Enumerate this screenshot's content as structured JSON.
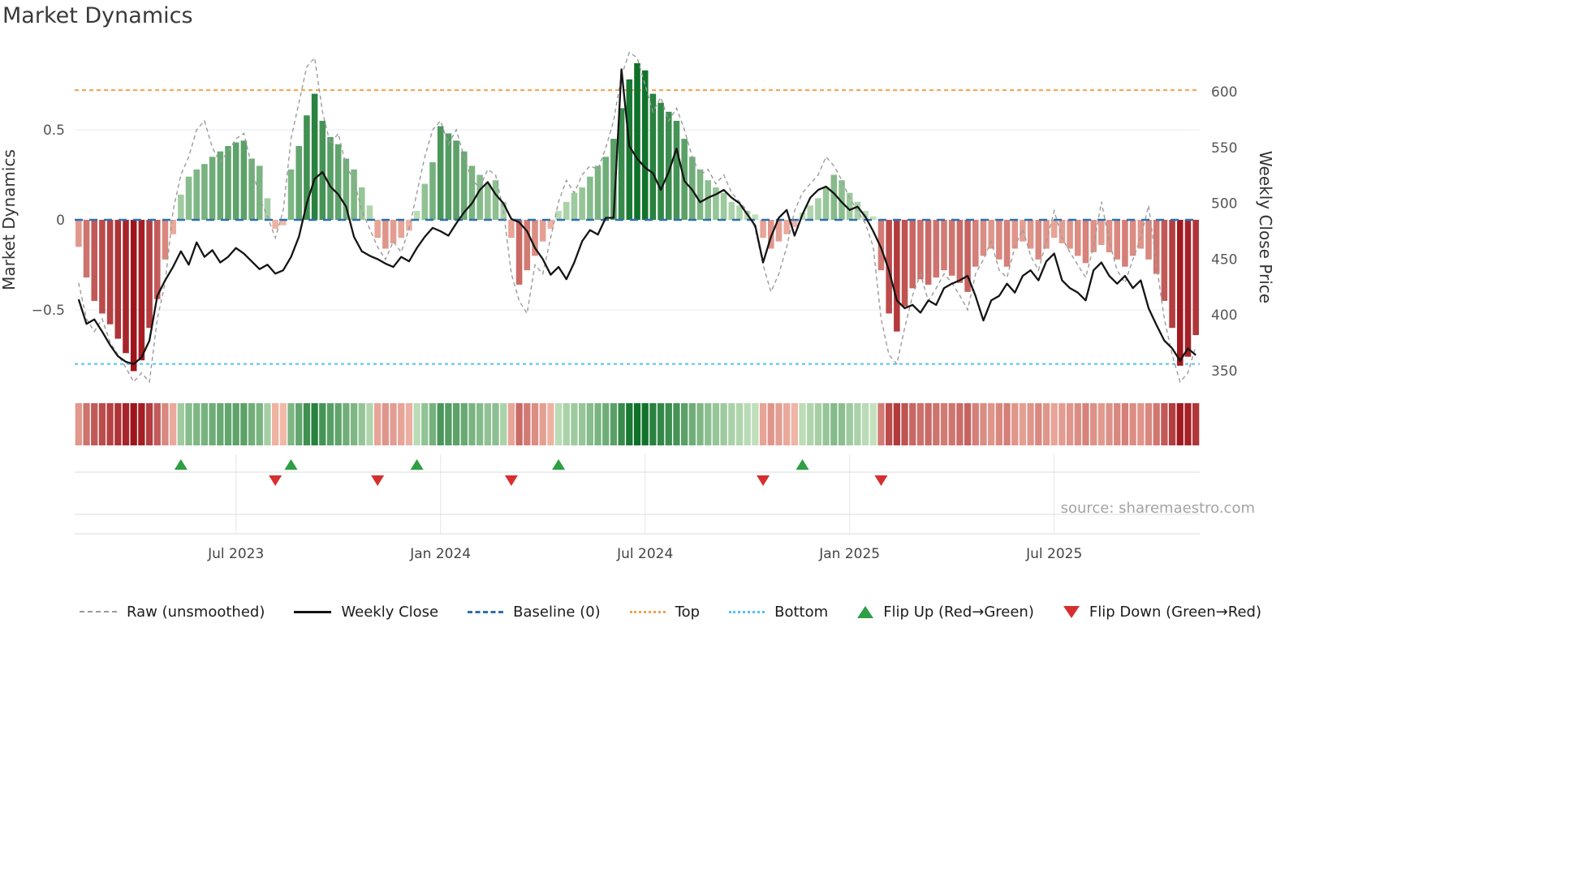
{
  "title": "Market Dynamics",
  "source": "source: sharemaestro.com",
  "colors": {
    "baseline": "#2f6fad",
    "top_line": "#f5a04a",
    "bottom_line": "#4fc3f7",
    "raw_line": "#9b9b9b",
    "price_line": "#141414",
    "flip_up": "#2f9e44",
    "flip_down": "#d62f2f",
    "bar_green_light": "#cde7c5",
    "bar_green_dark": "#0d7128",
    "bar_red_light": "#f7c4b3",
    "bar_red_dark": "#9e121a",
    "gridline": "#e9eef5",
    "band_line": "#dcdcdc",
    "tick_text": "#555555",
    "axis_title_text": "#333333",
    "source_text": "#a3a3a3"
  },
  "legend": {
    "position": "bottom",
    "items": [
      {
        "label": "Raw (unsmoothed)",
        "symbol": "gray-dashed-line"
      },
      {
        "label": "Weekly Close",
        "symbol": "black-solid-line"
      },
      {
        "label": "Baseline (0)",
        "symbol": "blue-long-dashed-line"
      },
      {
        "label": "Top",
        "symbol": "orange-dotted-line"
      },
      {
        "label": "Bottom",
        "symbol": "cyan-dotted-line"
      },
      {
        "label": "Flip Up (Red→Green)",
        "symbol": "green-triangle-up"
      },
      {
        "label": "Flip Down (Green→Red)",
        "symbol": "red-triangle-down"
      }
    ]
  },
  "chart_data": {
    "type": "combo",
    "title": "Market Dynamics",
    "grid": true,
    "y_left": {
      "label": "Market Dynamics",
      "ticks": [
        {
          "value": 0.5,
          "label": "0.5"
        },
        {
          "value": 0,
          "label": "0"
        },
        {
          "value": -0.5,
          "label": "−0.5"
        }
      ],
      "range": [
        -0.95,
        0.95
      ]
    },
    "y_right": {
      "label": "Weekly Close Price",
      "ticks": [
        {
          "value": 600,
          "label": "600"
        },
        {
          "value": 550,
          "label": "550"
        },
        {
          "value": 500,
          "label": "500"
        },
        {
          "value": 450,
          "label": "450"
        },
        {
          "value": 400,
          "label": "400"
        },
        {
          "value": 350,
          "label": "350"
        }
      ],
      "range": [
        333,
        638
      ]
    },
    "x_axis": {
      "ticks": [
        {
          "week": 20,
          "label": "Jul 2023"
        },
        {
          "week": 46,
          "label": "Jan 2024"
        },
        {
          "week": 72,
          "label": "Jul 2024"
        },
        {
          "week": 98,
          "label": "Jan 2025"
        },
        {
          "week": 124,
          "label": "Jul 2025"
        }
      ]
    },
    "reference_lines": {
      "baseline": 0,
      "top": 0.72,
      "bottom": -0.8
    },
    "flip_up_weeks": [
      13,
      27,
      43,
      61,
      92
    ],
    "flip_down_weeks": [
      25,
      38,
      55,
      87,
      102
    ],
    "heatmap_strip": {
      "derived_from": "series.0.values",
      "note": "weekly color band, red negative / green positive, intensity by magnitude"
    },
    "series": [
      {
        "name": "Market Dynamics (smoothed bars)",
        "type": "bar",
        "axis": "left",
        "values": [
          -0.15,
          -0.32,
          -0.45,
          -0.52,
          -0.58,
          -0.66,
          -0.74,
          -0.84,
          -0.78,
          -0.6,
          -0.44,
          -0.22,
          -0.08,
          0.14,
          0.24,
          0.28,
          0.31,
          0.35,
          0.38,
          0.41,
          0.43,
          0.44,
          0.34,
          0.3,
          0.12,
          -0.05,
          -0.03,
          0.28,
          0.41,
          0.58,
          0.7,
          0.55,
          0.46,
          0.42,
          0.34,
          0.28,
          0.18,
          0.08,
          -0.1,
          -0.16,
          -0.13,
          -0.1,
          -0.06,
          0.05,
          0.2,
          0.32,
          0.52,
          0.48,
          0.44,
          0.38,
          0.3,
          0.25,
          0.2,
          0.22,
          0.1,
          -0.1,
          -0.36,
          -0.28,
          -0.2,
          -0.12,
          -0.05,
          0.05,
          0.1,
          0.15,
          0.18,
          0.24,
          0.3,
          0.35,
          0.45,
          0.62,
          0.78,
          0.87,
          0.83,
          0.7,
          0.65,
          0.6,
          0.55,
          0.45,
          0.35,
          0.28,
          0.22,
          0.18,
          0.15,
          0.1,
          0.08,
          0.05,
          0.03,
          -0.1,
          -0.16,
          -0.12,
          -0.08,
          -0.04,
          0.04,
          0.08,
          0.12,
          0.18,
          0.25,
          0.22,
          0.15,
          0.1,
          0.05,
          0.02,
          -0.28,
          -0.52,
          -0.62,
          -0.48,
          -0.38,
          -0.33,
          -0.36,
          -0.32,
          -0.28,
          -0.31,
          -0.35,
          -0.4,
          -0.26,
          -0.2,
          -0.16,
          -0.22,
          -0.26,
          -0.16,
          -0.12,
          -0.16,
          -0.22,
          -0.16,
          -0.1,
          -0.13,
          -0.16,
          -0.2,
          -0.24,
          -0.18,
          -0.14,
          -0.18,
          -0.22,
          -0.26,
          -0.2,
          -0.16,
          -0.22,
          -0.3,
          -0.45,
          -0.6,
          -0.81,
          -0.76,
          -0.64
        ]
      },
      {
        "name": "Raw (unsmoothed)",
        "type": "line",
        "line_style": "dashed",
        "axis": "left",
        "values": [
          -0.35,
          -0.55,
          -0.62,
          -0.55,
          -0.68,
          -0.75,
          -0.82,
          -0.9,
          -0.85,
          -0.9,
          -0.55,
          -0.35,
          0.05,
          0.25,
          0.35,
          0.5,
          0.55,
          0.4,
          0.32,
          0.38,
          0.45,
          0.48,
          0.3,
          0.12,
          0.02,
          -0.1,
          0.05,
          0.45,
          0.65,
          0.85,
          0.9,
          0.6,
          0.42,
          0.48,
          0.3,
          0.22,
          0.05,
          -0.05,
          -0.15,
          -0.22,
          -0.12,
          -0.18,
          -0.05,
          0.15,
          0.35,
          0.5,
          0.55,
          0.42,
          0.5,
          0.35,
          0.22,
          0.18,
          0.28,
          0.25,
          0.05,
          -0.3,
          -0.45,
          -0.52,
          -0.25,
          -0.3,
          -0.1,
          0.1,
          0.22,
          0.15,
          0.25,
          0.3,
          0.28,
          0.4,
          0.55,
          0.8,
          0.93,
          0.9,
          0.75,
          0.6,
          0.68,
          0.55,
          0.62,
          0.5,
          0.35,
          0.25,
          0.28,
          0.2,
          0.25,
          0.15,
          0.1,
          0.05,
          -0.05,
          -0.25,
          -0.4,
          -0.3,
          -0.15,
          0.05,
          0.15,
          0.2,
          0.25,
          0.35,
          0.3,
          0.22,
          0.12,
          0.05,
          -0.02,
          -0.15,
          -0.55,
          -0.75,
          -0.8,
          -0.6,
          -0.42,
          -0.3,
          -0.45,
          -0.38,
          -0.3,
          -0.35,
          -0.42,
          -0.5,
          -0.3,
          -0.22,
          -0.12,
          -0.28,
          -0.32,
          -0.15,
          -0.05,
          -0.2,
          -0.28,
          -0.12,
          0.05,
          -0.1,
          -0.18,
          -0.25,
          -0.32,
          -0.15,
          0.1,
          -0.12,
          -0.28,
          -0.35,
          -0.22,
          -0.1,
          0.08,
          -0.25,
          -0.55,
          -0.75,
          -0.9,
          -0.85,
          -0.7
        ]
      },
      {
        "name": "Weekly Close",
        "type": "line",
        "axis": "right",
        "values": [
          414,
          392,
          396,
          385,
          373,
          363,
          358,
          356,
          362,
          377,
          417,
          431,
          443,
          457,
          445,
          465,
          452,
          458,
          447,
          452,
          460,
          455,
          448,
          441,
          445,
          437,
          440,
          452,
          470,
          500,
          522,
          528,
          515,
          508,
          497,
          470,
          457,
          453,
          450,
          446,
          443,
          452,
          448,
          460,
          470,
          478,
          475,
          471,
          482,
          492,
          500,
          512,
          519,
          508,
          500,
          486,
          483,
          475,
          460,
          450,
          436,
          443,
          432,
          447,
          466,
          476,
          472,
          487,
          487,
          620,
          551,
          540,
          532,
          527,
          512,
          528,
          549,
          520,
          512,
          501,
          505,
          508,
          512,
          505,
          500,
          490,
          480,
          447,
          470,
          487,
          494,
          471,
          490,
          505,
          512,
          515,
          509,
          501,
          494,
          497,
          488,
          475,
          460,
          440,
          413,
          406,
          409,
          402,
          413,
          409,
          424,
          428,
          431,
          435,
          417,
          395,
          413,
          417,
          428,
          420,
          435,
          440,
          431,
          448,
          455,
          431,
          424,
          420,
          413,
          440,
          447,
          435,
          428,
          435,
          424,
          431,
          406,
          391,
          377,
          370,
          359,
          370,
          364
        ]
      }
    ]
  }
}
